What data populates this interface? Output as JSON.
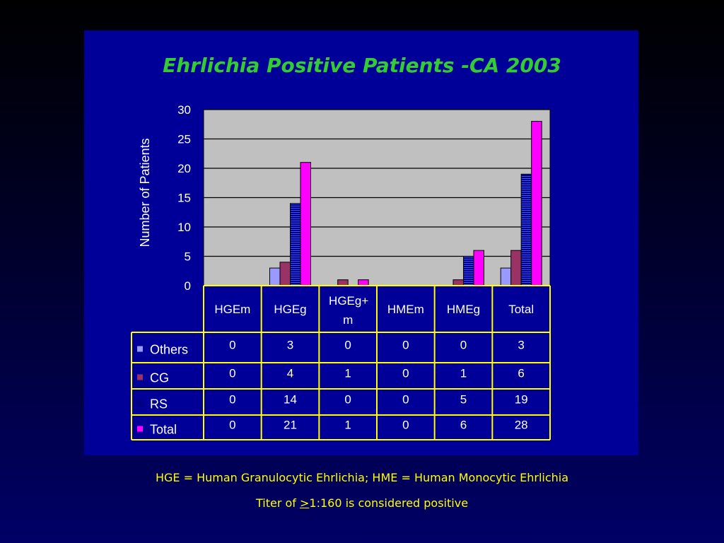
{
  "chart_data": {
    "type": "bar",
    "title": "Ehrlichia Positive Patients -CA 2003",
    "ylabel": "Number of Patients",
    "xlabel": "",
    "ylim": [
      0,
      30
    ],
    "yticks": [
      0,
      5,
      10,
      15,
      20,
      25,
      30
    ],
    "categories": [
      "HGEm",
      "HGEg",
      "HGEg+m",
      "HMEm",
      "HMEg",
      "Total"
    ],
    "series": [
      {
        "name": "Others",
        "color": "#9999ff",
        "values": [
          0,
          3,
          0,
          0,
          0,
          3
        ]
      },
      {
        "name": "CG",
        "color": "#993366",
        "values": [
          0,
          4,
          1,
          0,
          1,
          6
        ]
      },
      {
        "name": "RS",
        "color": "#000080",
        "values": [
          0,
          14,
          0,
          0,
          5,
          19
        ]
      },
      {
        "name": "Total",
        "color": "#ff00ff",
        "values": [
          0,
          21,
          1,
          0,
          6,
          28
        ]
      }
    ],
    "grid": true,
    "legend": "data-table-left"
  },
  "footnotes": {
    "line1": "HGE = Human Granulocytic Ehrlichia;  HME = Human Monocytic Ehrlichia",
    "line2_prefix": "Titer of ",
    "line2_ge": ">",
    "line2_suffix": "1:160 is considered positive"
  }
}
